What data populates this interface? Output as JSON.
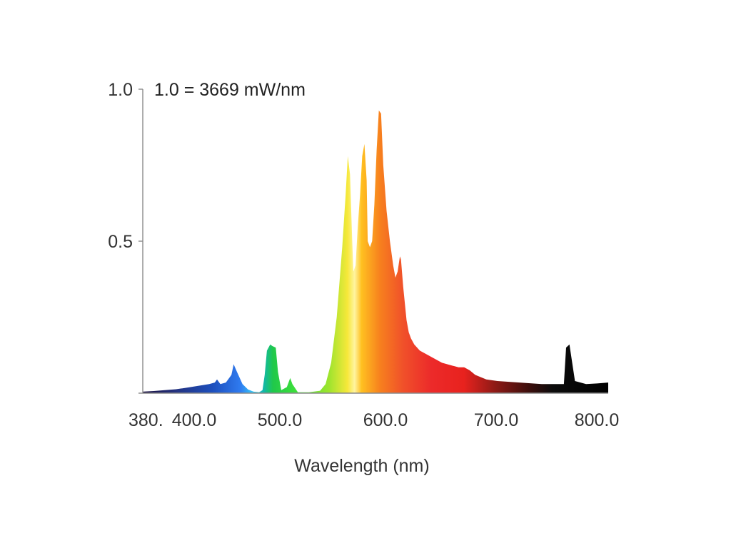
{
  "chart_data": {
    "type": "area",
    "title": "",
    "annotation": "1.0 = 3669 mW/nm",
    "xlabel": "Wavelength (nm)",
    "ylabel": "",
    "xlim": [
      380,
      800
    ],
    "ylim": [
      0,
      1.0
    ],
    "x_ticks": [
      {
        "value": 380,
        "label": "380."
      },
      {
        "value": 400,
        "label": "400.0"
      },
      {
        "value": 500,
        "label": "500.0"
      },
      {
        "value": 600,
        "label": "600.0"
      },
      {
        "value": 700,
        "label": "700.0"
      },
      {
        "value": 800,
        "label": "800.0"
      }
    ],
    "y_ticks": [
      {
        "value": 0.5,
        "label": "0.5"
      },
      {
        "value": 1.0,
        "label": "1.0"
      }
    ],
    "grid": false,
    "fill": "visible-spectrum gradient",
    "series": [
      {
        "x": [
          380,
          390,
          400,
          410,
          420,
          430,
          440,
          445,
          447,
          450,
          455,
          460,
          462,
          465,
          470,
          475,
          480,
          485,
          488,
          490,
          492,
          495,
          497,
          500,
          502,
          505,
          510,
          513,
          515,
          520,
          530,
          540,
          545,
          550,
          555,
          560,
          563,
          565,
          567,
          569,
          570,
          572,
          574,
          576,
          578,
          580,
          582,
          583,
          585,
          587,
          589,
          591,
          593,
          595,
          597,
          600,
          603,
          606,
          608,
          610,
          612,
          613,
          615,
          618,
          620,
          622,
          625,
          630,
          640,
          650,
          660,
          665,
          670,
          675,
          680,
          690,
          700,
          720,
          740,
          750,
          755,
          758,
          760,
          762,
          765,
          770,
          780,
          790,
          800
        ],
        "y": [
          0.005,
          0.007,
          0.01,
          0.013,
          0.018,
          0.024,
          0.03,
          0.035,
          0.045,
          0.03,
          0.035,
          0.06,
          0.095,
          0.07,
          0.03,
          0.012,
          0.005,
          0.003,
          0.01,
          0.06,
          0.14,
          0.16,
          0.155,
          0.15,
          0.07,
          0.01,
          0.02,
          0.05,
          0.03,
          0.003,
          0.003,
          0.008,
          0.03,
          0.1,
          0.25,
          0.48,
          0.65,
          0.78,
          0.72,
          0.5,
          0.4,
          0.42,
          0.55,
          0.65,
          0.78,
          0.82,
          0.7,
          0.5,
          0.48,
          0.5,
          0.62,
          0.8,
          0.93,
          0.92,
          0.75,
          0.6,
          0.5,
          0.42,
          0.38,
          0.4,
          0.45,
          0.44,
          0.35,
          0.24,
          0.2,
          0.18,
          0.16,
          0.14,
          0.12,
          0.1,
          0.09,
          0.085,
          0.085,
          0.075,
          0.06,
          0.045,
          0.04,
          0.035,
          0.03,
          0.03,
          0.03,
          0.03,
          0.03,
          0.15,
          0.16,
          0.04,
          0.03,
          0.032,
          0.035
        ]
      }
    ]
  }
}
